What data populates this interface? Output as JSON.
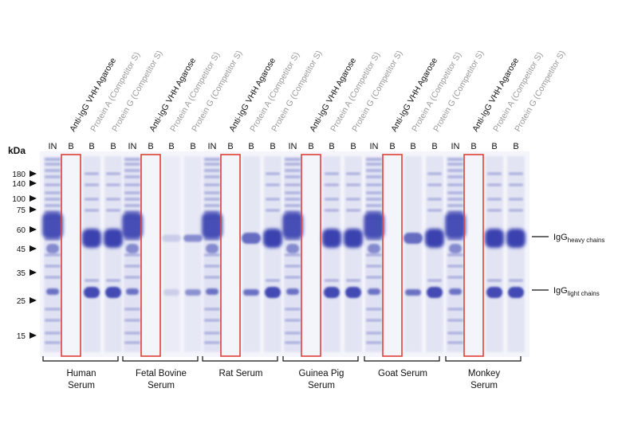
{
  "kda_label": "kDa",
  "markers": [
    "180",
    "140",
    "100",
    "75",
    "60",
    "45",
    "35",
    "25",
    "15"
  ],
  "column_labels": [
    {
      "text": "Anti-IgG VHH Agarose",
      "tone": "dark"
    },
    {
      "text": "Protein A (Competitor S)",
      "tone": "light"
    },
    {
      "text": "Protein G (Competitor S)",
      "tone": "light"
    }
  ],
  "lane_codes": {
    "input": "IN",
    "bound": "B"
  },
  "chain_labels": {
    "heavy": {
      "main": "IgG",
      "sub": "heavy chains"
    },
    "light": {
      "main": "IgG",
      "sub": "light chains"
    }
  },
  "groups": [
    {
      "name_line1": "Human",
      "name_line2": "Serum",
      "lanes": {
        "vhh": "none",
        "proteinA": "full",
        "proteinG": "full"
      }
    },
    {
      "name_line1": "Fetal Bovine",
      "name_line2": "Serum",
      "lanes": {
        "vhh": "none",
        "proteinA": "faint",
        "proteinG": "weak"
      }
    },
    {
      "name_line1": "Rat Serum",
      "name_line2": "",
      "lanes": {
        "vhh": "none",
        "proteinA": "medium",
        "proteinG": "full"
      }
    },
    {
      "name_line1": "Guinea Pig",
      "name_line2": "Serum",
      "lanes": {
        "vhh": "none",
        "proteinA": "full",
        "proteinG": "full"
      }
    },
    {
      "name_line1": "Goat Serum",
      "name_line2": "",
      "lanes": {
        "vhh": "none",
        "proteinA": "medium",
        "proteinG": "full"
      }
    },
    {
      "name_line1": "Monkey",
      "name_line2": "Serum",
      "lanes": {
        "vhh": "none",
        "proteinA": "full",
        "proteinG": "full"
      }
    }
  ],
  "colors": {
    "band": "#3a43b0",
    "highlight": "#e0403a",
    "gel_bg": "#f3f4fb",
    "label_dark": "#111111",
    "label_light": "#9a9a9a"
  }
}
